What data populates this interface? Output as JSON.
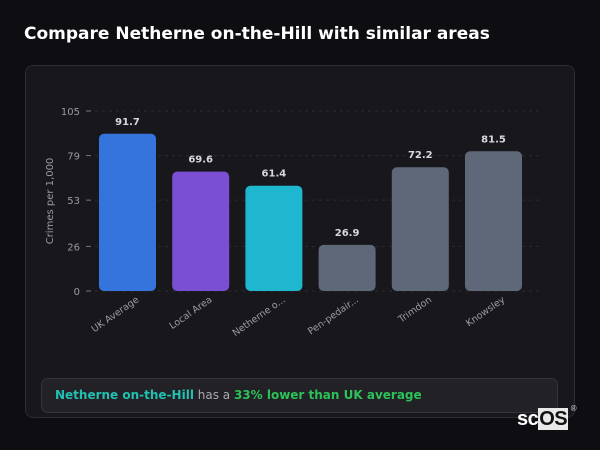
{
  "header": {
    "title": "Compare Netherne on-the-Hill with similar areas"
  },
  "chart_data": {
    "type": "bar",
    "ylabel": "Crimes per 1,000",
    "ylim": [
      0,
      105
    ],
    "yticks": [
      0,
      26,
      53,
      79,
      105
    ],
    "categories": [
      "UK Average",
      "Local Area",
      "Netherne o...",
      "Pen-pedair...",
      "Trimdon",
      "Knowsley"
    ],
    "values": [
      91.7,
      69.6,
      61.4,
      26.9,
      72.2,
      81.5
    ],
    "colors": [
      "#3574dc",
      "#7b4fd4",
      "#1fb7cf",
      "#5f6878",
      "#5f6878",
      "#5f6878"
    ],
    "grid": true
  },
  "summary": {
    "place": "Netherne on-the-Hill",
    "middle": " has a ",
    "stat": "33% lower than UK average"
  },
  "logo": {
    "text_a": "sc",
    "text_b": "OS",
    "reg": "®"
  }
}
